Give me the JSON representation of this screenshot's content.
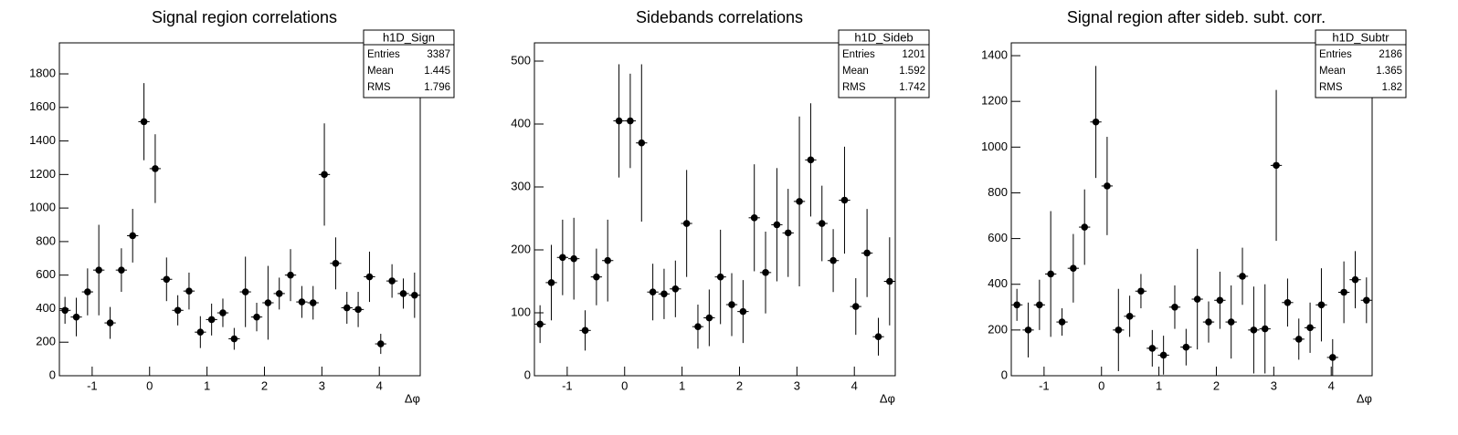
{
  "chart_data": [
    {
      "type": "errorbar",
      "title": "Signal region correlations",
      "x_label": "Δφ",
      "x": [
        -1.473,
        -1.276,
        -1.08,
        -0.884,
        -0.687,
        -0.491,
        -0.295,
        -0.098,
        0.098,
        0.295,
        0.491,
        0.687,
        0.884,
        1.08,
        1.276,
        1.473,
        1.669,
        1.865,
        2.062,
        2.258,
        2.454,
        2.651,
        2.847,
        3.043,
        3.24,
        3.436,
        3.632,
        3.829,
        4.025,
        4.221,
        4.418,
        4.614
      ],
      "xerr": 0.098,
      "values": [
        390,
        350,
        500,
        630,
        315,
        630,
        835,
        1515,
        1235,
        575,
        390,
        505,
        260,
        335,
        375,
        220,
        500,
        350,
        435,
        490,
        600,
        440,
        435,
        1200,
        670,
        405,
        395,
        590,
        190,
        565,
        490,
        480
      ],
      "errors": [
        80,
        115,
        140,
        270,
        95,
        130,
        160,
        230,
        205,
        130,
        90,
        110,
        95,
        95,
        85,
        65,
        210,
        85,
        220,
        95,
        155,
        95,
        100,
        305,
        155,
        95,
        105,
        150,
        60,
        100,
        90,
        135
      ],
      "xlim": [
        -1.5708,
        4.7124
      ],
      "xticks": [
        -1,
        0,
        1,
        2,
        3,
        4
      ],
      "ylim": [
        0,
        1985
      ],
      "yticks": [
        0,
        200,
        400,
        600,
        800,
        1000,
        1200,
        1400,
        1600,
        1800
      ],
      "color": "#000000",
      "stats": {
        "title": "h1D_Sign",
        "rows": [
          [
            "Entries",
            3387
          ],
          [
            "Mean",
            1.445
          ],
          [
            "RMS",
            1.796
          ]
        ]
      }
    },
    {
      "type": "errorbar",
      "title": "Sidebands correlations",
      "x_label": "Δφ",
      "x": [
        -1.473,
        -1.276,
        -1.08,
        -0.884,
        -0.687,
        -0.491,
        -0.295,
        -0.098,
        0.098,
        0.295,
        0.491,
        0.687,
        0.884,
        1.08,
        1.276,
        1.473,
        1.669,
        1.865,
        2.062,
        2.258,
        2.454,
        2.651,
        2.847,
        3.043,
        3.24,
        3.436,
        3.632,
        3.829,
        4.025,
        4.221,
        4.418,
        4.614
      ],
      "xerr": 0.098,
      "values": [
        82,
        148,
        188,
        186,
        72,
        157,
        183,
        405,
        405,
        370,
        133,
        130,
        138,
        242,
        78,
        92,
        157,
        113,
        102,
        251,
        164,
        240,
        227,
        277,
        343,
        242,
        183,
        279,
        110,
        195,
        62,
        150
      ],
      "errors": [
        30,
        60,
        60,
        65,
        32,
        45,
        65,
        90,
        75,
        125,
        45,
        40,
        45,
        85,
        35,
        45,
        75,
        50,
        50,
        85,
        65,
        90,
        70,
        135,
        90,
        60,
        50,
        85,
        45,
        70,
        30,
        70
      ],
      "xlim": [
        -1.5708,
        4.7124
      ],
      "xticks": [
        -1,
        0,
        1,
        2,
        3,
        4
      ],
      "ylim": [
        0,
        529
      ],
      "yticks": [
        0,
        100,
        200,
        300,
        400,
        500
      ],
      "color": "#000000",
      "stats": {
        "title": "h1D_Sideb",
        "rows": [
          [
            "Entries",
            1201
          ],
          [
            "Mean",
            1.592
          ],
          [
            "RMS",
            1.742
          ]
        ]
      }
    },
    {
      "type": "errorbar",
      "title": "Signal region after sideb. subt. corr.",
      "x_label": "Δφ",
      "x": [
        -1.473,
        -1.276,
        -1.08,
        -0.884,
        -0.687,
        -0.491,
        -0.295,
        -0.098,
        0.098,
        0.295,
        0.491,
        0.687,
        0.884,
        1.08,
        1.276,
        1.473,
        1.669,
        1.865,
        2.062,
        2.258,
        2.454,
        2.651,
        2.847,
        3.043,
        3.24,
        3.436,
        3.632,
        3.829,
        4.025,
        4.221,
        4.418,
        4.614
      ],
      "xerr": 0.098,
      "values": [
        310,
        200,
        310,
        445,
        235,
        470,
        650,
        1110,
        830,
        200,
        260,
        370,
        120,
        90,
        300,
        125,
        335,
        235,
        330,
        235,
        435,
        200,
        205,
        920,
        320,
        160,
        210,
        310,
        80,
        365,
        420,
        330
      ],
      "errors": [
        70,
        120,
        110,
        275,
        60,
        150,
        165,
        245,
        215,
        180,
        90,
        75,
        80,
        85,
        95,
        80,
        220,
        90,
        125,
        160,
        125,
        190,
        195,
        330,
        105,
        90,
        110,
        160,
        80,
        135,
        125,
        100
      ],
      "xlim": [
        -1.5708,
        4.7124
      ],
      "xticks": [
        -1,
        0,
        1,
        2,
        3,
        4
      ],
      "ylim": [
        0,
        1456
      ],
      "yticks": [
        0,
        200,
        400,
        600,
        800,
        1000,
        1200,
        1400
      ],
      "color": "#000000",
      "stats": {
        "title": "h1D_Subtr",
        "rows": [
          [
            "Entries",
            2186
          ],
          [
            "Mean",
            1.365
          ],
          [
            "RMS",
            1.82
          ]
        ]
      }
    }
  ]
}
